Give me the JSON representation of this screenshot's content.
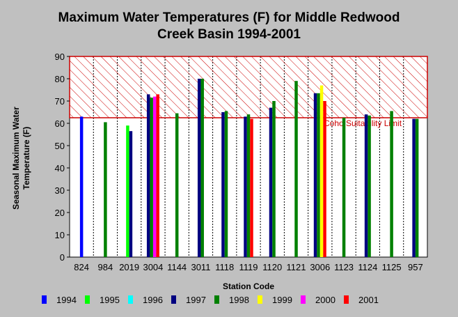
{
  "chart_data": {
    "type": "bar",
    "title": "Maximum Water Temperatures (F) for Middle Redwood",
    "title_line2": "Creek Basin 1994-2001",
    "xlabel": "Station Code",
    "ylabel_line1": "Seasonal Maximum Water",
    "ylabel_line2": "Temperature  (F)",
    "ylim": [
      0,
      90
    ],
    "yticks": [
      "0",
      "10",
      "20",
      "30",
      "40",
      "50",
      "60",
      "70",
      "80",
      "90"
    ],
    "grid": "vertical dashed",
    "legend_position": "bottom",
    "categories": [
      "824",
      "984",
      "2019",
      "3004",
      "1144",
      "3011",
      "1118",
      "1119",
      "1120",
      "1121",
      "3006",
      "1123",
      "1124",
      "1125",
      "957"
    ],
    "series": [
      {
        "name": "1994",
        "color": "#0000ff",
        "values": [
          63,
          null,
          null,
          null,
          null,
          null,
          null,
          null,
          null,
          null,
          null,
          null,
          null,
          null,
          null
        ]
      },
      {
        "name": "1995",
        "color": "#00ff00",
        "values": [
          null,
          null,
          59,
          null,
          null,
          null,
          null,
          null,
          null,
          null,
          null,
          null,
          null,
          null,
          null
        ]
      },
      {
        "name": "1996",
        "color": "#00ffff",
        "values": [
          null,
          null,
          null,
          null,
          null,
          null,
          null,
          null,
          null,
          null,
          null,
          null,
          null,
          null,
          null
        ]
      },
      {
        "name": "1997",
        "color": "#000080",
        "values": [
          null,
          null,
          56.5,
          73,
          null,
          80,
          65,
          63,
          67,
          null,
          73.5,
          null,
          64,
          null,
          62
        ]
      },
      {
        "name": "1998",
        "color": "#008000",
        "values": [
          null,
          60.5,
          null,
          71.5,
          64.5,
          80,
          65.5,
          64,
          70,
          79,
          73.5,
          62.5,
          63.5,
          65.5,
          62
        ]
      },
      {
        "name": "1999",
        "color": "#ffff00",
        "values": [
          null,
          null,
          null,
          null,
          null,
          null,
          null,
          null,
          null,
          null,
          77,
          null,
          null,
          null,
          null
        ]
      },
      {
        "name": "2000",
        "color": "#ff00ff",
        "values": [
          null,
          null,
          null,
          72,
          null,
          null,
          null,
          null,
          null,
          null,
          null,
          null,
          null,
          null,
          null
        ]
      },
      {
        "name": "2001",
        "color": "#ff0000",
        "values": [
          null,
          null,
          null,
          73,
          null,
          null,
          null,
          62,
          null,
          null,
          70,
          null,
          null,
          null,
          null
        ]
      }
    ],
    "threshold": {
      "value": 62.5,
      "label": "Coho Suitability Limit",
      "color": "#cc0000",
      "upper": 90
    }
  }
}
